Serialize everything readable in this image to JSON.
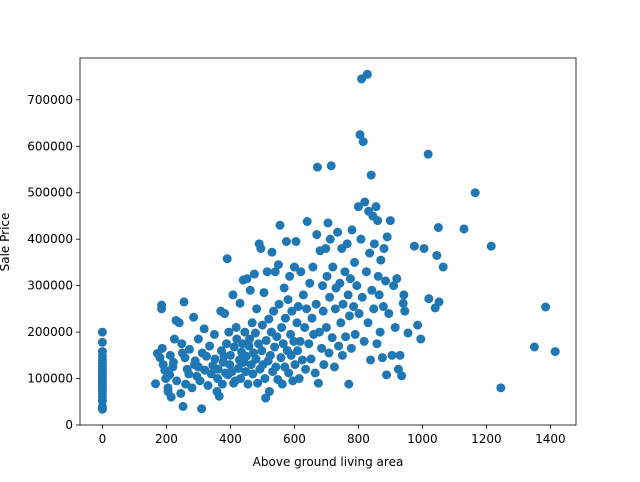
{
  "chart_data": {
    "type": "scatter",
    "title": "",
    "xlabel": "Above ground living area",
    "ylabel": "Sale Price",
    "xlim": [
      -70,
      1480
    ],
    "ylim": [
      0,
      790000
    ],
    "grid": false,
    "marker_color": "#1f77b4",
    "x_ticks": [
      0,
      200,
      400,
      600,
      800,
      1000,
      1200,
      1400
    ],
    "y_ticks": [
      0,
      100000,
      200000,
      300000,
      400000,
      500000,
      600000,
      700000
    ],
    "x_tick_labels": [
      "0",
      "200",
      "400",
      "600",
      "800",
      "1000",
      "1200",
      "1400"
    ],
    "y_tick_labels": [
      "0",
      "100000",
      "200000",
      "300000",
      "400000",
      "500000",
      "600000",
      "700000"
    ],
    "points": [
      [
        0,
        34000
      ],
      [
        0,
        40000
      ],
      [
        0,
        52000
      ],
      [
        0,
        60000
      ],
      [
        0,
        68000
      ],
      [
        0,
        75000
      ],
      [
        0,
        82000
      ],
      [
        0,
        88000
      ],
      [
        0,
        94000
      ],
      [
        0,
        100000
      ],
      [
        0,
        106000
      ],
      [
        0,
        112000
      ],
      [
        0,
        118000
      ],
      [
        0,
        125000
      ],
      [
        0,
        132000
      ],
      [
        0,
        140000
      ],
      [
        0,
        148000
      ],
      [
        0,
        158000
      ],
      [
        0,
        178000
      ],
      [
        0,
        200000
      ],
      [
        166,
        89000
      ],
      [
        172,
        154000
      ],
      [
        180,
        145000
      ],
      [
        185,
        258000
      ],
      [
        185,
        250000
      ],
      [
        187,
        165000
      ],
      [
        190,
        130000
      ],
      [
        195,
        118000
      ],
      [
        198,
        100000
      ],
      [
        205,
        80000
      ],
      [
        205,
        72000
      ],
      [
        210,
        108000
      ],
      [
        212,
        150000
      ],
      [
        215,
        60000
      ],
      [
        220,
        125000
      ],
      [
        222,
        135000
      ],
      [
        225,
        185000
      ],
      [
        230,
        225000
      ],
      [
        232,
        95000
      ],
      [
        240,
        220000
      ],
      [
        245,
        68000
      ],
      [
        248,
        175000
      ],
      [
        250,
        155000
      ],
      [
        252,
        40000
      ],
      [
        255,
        265000
      ],
      [
        258,
        145000
      ],
      [
        260,
        88000
      ],
      [
        265,
        120000
      ],
      [
        270,
        110000
      ],
      [
        272,
        163000
      ],
      [
        280,
        80000
      ],
      [
        285,
        232000
      ],
      [
        288,
        130000
      ],
      [
        290,
        138000
      ],
      [
        295,
        105000
      ],
      [
        300,
        125000
      ],
      [
        300,
        185000
      ],
      [
        305,
        95000
      ],
      [
        310,
        35000
      ],
      [
        312,
        155000
      ],
      [
        318,
        207000
      ],
      [
        320,
        118000
      ],
      [
        325,
        148000
      ],
      [
        330,
        85000
      ],
      [
        335,
        170000
      ],
      [
        340,
        110000
      ],
      [
        345,
        128000
      ],
      [
        350,
        195000
      ],
      [
        352,
        142000
      ],
      [
        358,
        72000
      ],
      [
        360,
        100000
      ],
      [
        362,
        120000
      ],
      [
        365,
        62000
      ],
      [
        370,
        245000
      ],
      [
        372,
        160000
      ],
      [
        375,
        88000
      ],
      [
        378,
        135000
      ],
      [
        380,
        148000
      ],
      [
        382,
        240000
      ],
      [
        385,
        112000
      ],
      [
        388,
        175000
      ],
      [
        390,
        358000
      ],
      [
        392,
        108000
      ],
      [
        395,
        200000
      ],
      [
        398,
        130000
      ],
      [
        400,
        150000
      ],
      [
        405,
        115000
      ],
      [
        408,
        280000
      ],
      [
        410,
        90000
      ],
      [
        412,
        168000
      ],
      [
        415,
        95000
      ],
      [
        418,
        210000
      ],
      [
        420,
        185000
      ],
      [
        425,
        122000
      ],
      [
        428,
        140000
      ],
      [
        430,
        262000
      ],
      [
        432,
        100000
      ],
      [
        435,
        157000
      ],
      [
        438,
        175000
      ],
      [
        440,
        312000
      ],
      [
        442,
        135000
      ],
      [
        445,
        200000
      ],
      [
        448,
        115000
      ],
      [
        450,
        148000
      ],
      [
        452,
        315000
      ],
      [
        455,
        88000
      ],
      [
        458,
        170000
      ],
      [
        460,
        185000
      ],
      [
        462,
        290000
      ],
      [
        465,
        130000
      ],
      [
        468,
        220000
      ],
      [
        470,
        110000
      ],
      [
        472,
        155000
      ],
      [
        475,
        325000
      ],
      [
        478,
        198000
      ],
      [
        480,
        142000
      ],
      [
        482,
        250000
      ],
      [
        485,
        90000
      ],
      [
        488,
        175000
      ],
      [
        490,
        390000
      ],
      [
        492,
        120000
      ],
      [
        495,
        380000
      ],
      [
        498,
        160000
      ],
      [
        500,
        215000
      ],
      [
        502,
        130000
      ],
      [
        505,
        285000
      ],
      [
        508,
        100000
      ],
      [
        510,
        58000
      ],
      [
        512,
        182000
      ],
      [
        515,
        330000
      ],
      [
        518,
        138000
      ],
      [
        520,
        228000
      ],
      [
        522,
        72000
      ],
      [
        525,
        150000
      ],
      [
        528,
        200000
      ],
      [
        530,
        372000
      ],
      [
        532,
        115000
      ],
      [
        535,
        245000
      ],
      [
        538,
        168000
      ],
      [
        540,
        330000
      ],
      [
        542,
        125000
      ],
      [
        545,
        190000
      ],
      [
        548,
        98000
      ],
      [
        550,
        345000
      ],
      [
        552,
        260000
      ],
      [
        555,
        430000
      ],
      [
        558,
        145000
      ],
      [
        560,
        210000
      ],
      [
        562,
        88000
      ],
      [
        565,
        175000
      ],
      [
        568,
        295000
      ],
      [
        570,
        125000
      ],
      [
        572,
        230000
      ],
      [
        575,
        395000
      ],
      [
        578,
        160000
      ],
      [
        580,
        270000
      ],
      [
        582,
        112000
      ],
      [
        585,
        320000
      ],
      [
        588,
        195000
      ],
      [
        590,
        150000
      ],
      [
        592,
        245000
      ],
      [
        595,
        95000
      ],
      [
        598,
        180000
      ],
      [
        600,
        340000
      ],
      [
        602,
        130000
      ],
      [
        605,
        395000
      ],
      [
        608,
        220000
      ],
      [
        610,
        160000
      ],
      [
        612,
        255000
      ],
      [
        615,
        100000
      ],
      [
        618,
        180000
      ],
      [
        620,
        330000
      ],
      [
        625,
        140000
      ],
      [
        628,
        280000
      ],
      [
        632,
        210000
      ],
      [
        635,
        120000
      ],
      [
        638,
        250000
      ],
      [
        640,
        438000
      ],
      [
        645,
        175000
      ],
      [
        648,
        305000
      ],
      [
        652,
        142000
      ],
      [
        655,
        230000
      ],
      [
        658,
        340000
      ],
      [
        660,
        195000
      ],
      [
        665,
        112000
      ],
      [
        668,
        260000
      ],
      [
        670,
        410000
      ],
      [
        672,
        555000
      ],
      [
        675,
        90000
      ],
      [
        678,
        200000
      ],
      [
        680,
        375000
      ],
      [
        685,
        165000
      ],
      [
        688,
        300000
      ],
      [
        690,
        245000
      ],
      [
        692,
        130000
      ],
      [
        698,
        380000
      ],
      [
        700,
        210000
      ],
      [
        702,
        320000
      ],
      [
        705,
        435000
      ],
      [
        708,
        155000
      ],
      [
        710,
        275000
      ],
      [
        712,
        400000
      ],
      [
        715,
        558000
      ],
      [
        718,
        188000
      ],
      [
        720,
        340000
      ],
      [
        725,
        125000
      ],
      [
        728,
        250000
      ],
      [
        730,
        295000
      ],
      [
        735,
        415000
      ],
      [
        738,
        170000
      ],
      [
        742,
        305000
      ],
      [
        745,
        220000
      ],
      [
        748,
        380000
      ],
      [
        750,
        150000
      ],
      [
        752,
        260000
      ],
      [
        758,
        330000
      ],
      [
        760,
        190000
      ],
      [
        765,
        390000
      ],
      [
        768,
        280000
      ],
      [
        770,
        88000
      ],
      [
        772,
        235000
      ],
      [
        775,
        315000
      ],
      [
        778,
        165000
      ],
      [
        780,
        420000
      ],
      [
        785,
        255000
      ],
      [
        788,
        350000
      ],
      [
        790,
        195000
      ],
      [
        795,
        300000
      ],
      [
        800,
        470000
      ],
      [
        802,
        240000
      ],
      [
        805,
        625000
      ],
      [
        808,
        400000
      ],
      [
        810,
        745000
      ],
      [
        812,
        275000
      ],
      [
        815,
        610000
      ],
      [
        818,
        180000
      ],
      [
        820,
        480000
      ],
      [
        825,
        330000
      ],
      [
        828,
        755000
      ],
      [
        830,
        220000
      ],
      [
        832,
        460000
      ],
      [
        835,
        370000
      ],
      [
        838,
        140000
      ],
      [
        840,
        538000
      ],
      [
        842,
        290000
      ],
      [
        845,
        450000
      ],
      [
        848,
        250000
      ],
      [
        850,
        390000
      ],
      [
        855,
        470000
      ],
      [
        858,
        175000
      ],
      [
        860,
        440000
      ],
      [
        862,
        320000
      ],
      [
        865,
        280000
      ],
      [
        868,
        200000
      ],
      [
        870,
        355000
      ],
      [
        875,
        145000
      ],
      [
        878,
        255000
      ],
      [
        880,
        380000
      ],
      [
        885,
        310000
      ],
      [
        888,
        108000
      ],
      [
        890,
        405000
      ],
      [
        895,
        240000
      ],
      [
        900,
        440000
      ],
      [
        905,
        150000
      ],
      [
        910,
        300000
      ],
      [
        915,
        210000
      ],
      [
        920,
        315000
      ],
      [
        925,
        120000
      ],
      [
        930,
        150000
      ],
      [
        935,
        106000
      ],
      [
        940,
        262000
      ],
      [
        942,
        280000
      ],
      [
        945,
        245000
      ],
      [
        955,
        198000
      ],
      [
        975,
        385000
      ],
      [
        985,
        215000
      ],
      [
        995,
        185000
      ],
      [
        1005,
        380000
      ],
      [
        1018,
        583000
      ],
      [
        1020,
        272000
      ],
      [
        1040,
        252000
      ],
      [
        1045,
        365000
      ],
      [
        1050,
        425000
      ],
      [
        1052,
        265000
      ],
      [
        1065,
        340000
      ],
      [
        1130,
        422000
      ],
      [
        1165,
        500000
      ],
      [
        1215,
        385000
      ],
      [
        1245,
        80000
      ],
      [
        1350,
        168000
      ],
      [
        1385,
        254000
      ],
      [
        1415,
        158000
      ]
    ]
  }
}
